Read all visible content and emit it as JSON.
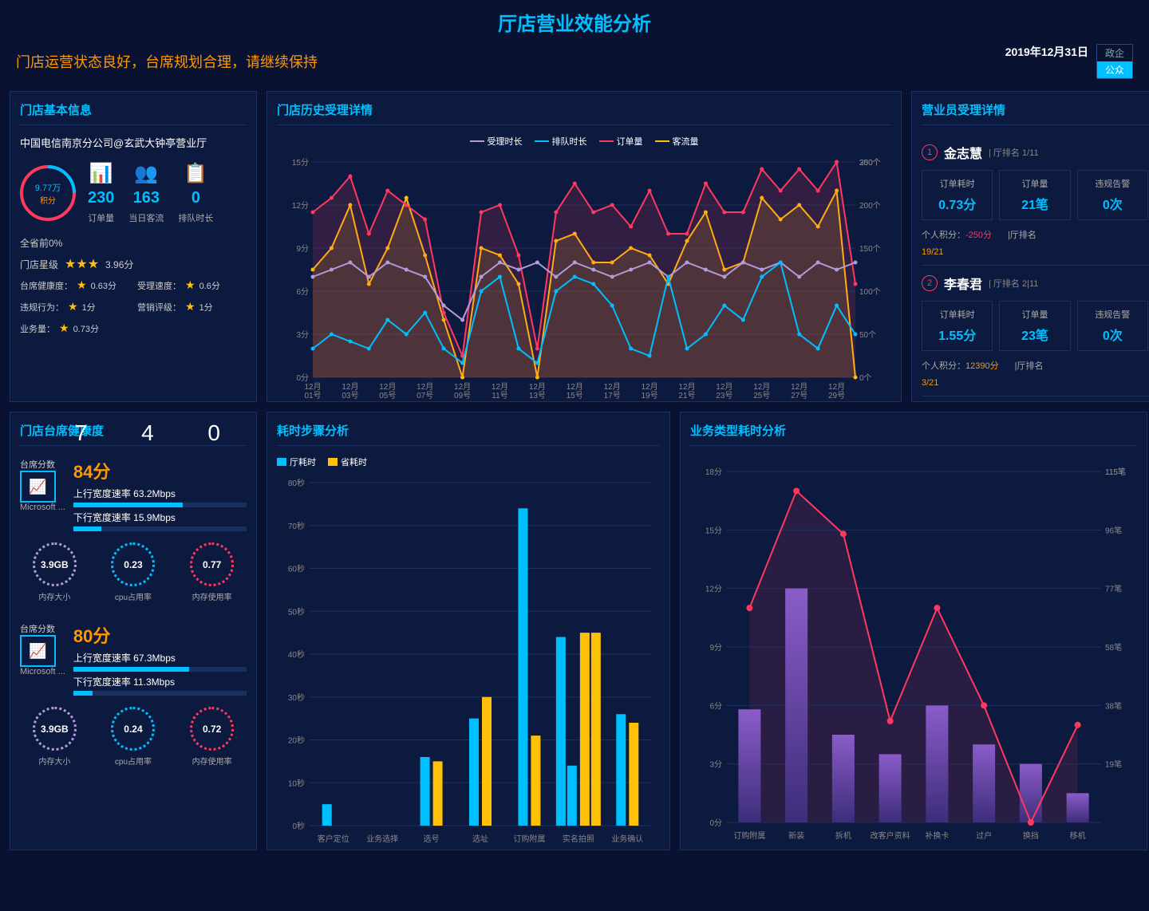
{
  "header": {
    "title": "厅店营业效能分析",
    "subtitle": "门店运营状态良好，台席规划合理，请继续保持",
    "date": "2019年12月31日",
    "tabs": [
      "政企",
      "公众"
    ],
    "active_tab": 1
  },
  "store_info": {
    "title": "门店基本信息",
    "name": "中国电信南京分公司@玄武大钟亭营业厅",
    "score_circle": {
      "value": "9.77万",
      "label": "积分"
    },
    "metrics": [
      {
        "icon": "📊",
        "color": "#00bfff",
        "value": "230",
        "label": "订单量"
      },
      {
        "icon": "👥",
        "color": "#ff3860",
        "value": "163",
        "label": "当日客流"
      },
      {
        "icon": "📋",
        "color": "#00bfff",
        "value": "0",
        "label": "排队时长"
      }
    ],
    "province_rank": "全省前0%",
    "star_label": "门店星级",
    "stars": 3,
    "star_score": "3.96分",
    "details": [
      {
        "label": "台席健康度：",
        "value": "0.63分"
      },
      {
        "label": "受理速度：",
        "value": "0.6分"
      },
      {
        "label": "违规行为：",
        "value": "1分"
      },
      {
        "label": "营销评级：",
        "value": "1分"
      },
      {
        "label": "业务量：",
        "value": "0.73分"
      }
    ]
  },
  "history_chart": {
    "title": "门店历史受理详情",
    "legend": [
      {
        "name": "受理时长",
        "color": "#b19cd9"
      },
      {
        "name": "排队时长",
        "color": "#00bfff"
      },
      {
        "name": "订单量",
        "color": "#ff3860"
      },
      {
        "name": "客流量",
        "color": "#ffc107"
      }
    ],
    "x_labels": [
      "12月01号",
      "12月03号",
      "12月05号",
      "12月07号",
      "12月09号",
      "12月11号",
      "12月13号",
      "12月15号",
      "12月17号",
      "12月19号",
      "12月21号",
      "12月23号",
      "12月25号",
      "12月27号",
      "12月29号"
    ],
    "y_left": {
      "max": 15,
      "step": 3,
      "unit": "分"
    },
    "y_right": {
      "max": 300,
      "step": 50,
      "unit": "个"
    },
    "series": {
      "受理时长": [
        7,
        7.5,
        8,
        7,
        8,
        7.5,
        7,
        5,
        4,
        7,
        8,
        7.5,
        8,
        7,
        8,
        7.5,
        7,
        7.5,
        8,
        7,
        8,
        7.5,
        7,
        8,
        7.5,
        8,
        7,
        8,
        7.5,
        8
      ],
      "排队时长": [
        2,
        3,
        2.5,
        2,
        4,
        3,
        4.5,
        2,
        1,
        6,
        7,
        2,
        1,
        6,
        7,
        6.5,
        5,
        2,
        1.5,
        7,
        2,
        3,
        5,
        4,
        7,
        8,
        3,
        2,
        5,
        3
      ],
      "订单量": [
        230,
        250,
        280,
        200,
        260,
        240,
        220,
        90,
        30,
        230,
        240,
        170,
        40,
        230,
        270,
        230,
        240,
        210,
        260,
        200,
        200,
        270,
        230,
        230,
        290,
        260,
        290,
        260,
        300,
        130
      ],
      "客流量": [
        150,
        180,
        240,
        130,
        180,
        250,
        170,
        80,
        0,
        180,
        170,
        130,
        0,
        190,
        200,
        160,
        160,
        180,
        170,
        130,
        190,
        230,
        150,
        160,
        250,
        220,
        240,
        210,
        260,
        0
      ]
    }
  },
  "employees": {
    "title": "营业员受理详情",
    "list": [
      {
        "rank": 1,
        "name": "金志慧",
        "hall_rank": "1/11",
        "stats": [
          {
            "label": "订单耗时",
            "value": "0.73分"
          },
          {
            "label": "订单量",
            "value": "21笔"
          },
          {
            "label": "违规告警",
            "value": "0次"
          }
        ],
        "points_label": "个人积分：",
        "points": "-250分",
        "points_class": "neg",
        "rank2_label": "|厅排名",
        "rank2": "19/21"
      },
      {
        "rank": 2,
        "name": "李春君",
        "hall_rank": "2|11",
        "stats": [
          {
            "label": "订单耗时",
            "value": "1.55分"
          },
          {
            "label": "订单量",
            "value": "23笔"
          },
          {
            "label": "违规告警",
            "value": "0次"
          }
        ],
        "points_label": "个人积分：",
        "points": "12390分",
        "points_class": "pos",
        "rank2_label": "|厅排名",
        "rank2": "3/21"
      }
    ]
  },
  "health": {
    "title": "门店台席健康度",
    "bignum": "740",
    "blocks": [
      {
        "label": "台席分数",
        "score": "84分",
        "system": "Microsoft ...",
        "up_label": "上行宽度速率",
        "up": "63.2Mbps",
        "up_pct": 63,
        "down_label": "下行宽度速率",
        "down": "15.9Mbps",
        "down_pct": 16,
        "gauges": [
          {
            "value": "3.9GB",
            "label": "内存大小",
            "color": "#b19cd9"
          },
          {
            "value": "0.23",
            "label": "cpu占用率",
            "color": "#00bfff"
          },
          {
            "value": "0.77",
            "label": "内存使用率",
            "color": "#ff3860"
          }
        ]
      },
      {
        "label": "台席分数",
        "score": "80分",
        "system": "Microsoft ...",
        "up_label": "上行宽度速率",
        "up": "67.3Mbps",
        "up_pct": 67,
        "down_label": "下行宽度速率",
        "down": "11.3Mbps",
        "down_pct": 11,
        "gauges": [
          {
            "value": "3.9GB",
            "label": "内存大小",
            "color": "#b19cd9"
          },
          {
            "value": "0.24",
            "label": "cpu占用率",
            "color": "#00bfff"
          },
          {
            "value": "0.72",
            "label": "内存使用率",
            "color": "#ff3860"
          }
        ]
      }
    ]
  },
  "step_chart": {
    "title": "耗时步骤分析",
    "legend": [
      {
        "name": "厅耗时",
        "color": "#00bfff"
      },
      {
        "name": "省耗时",
        "color": "#ffc107"
      }
    ],
    "x_labels": [
      "客户定位",
      "业务选择",
      "选号",
      "选址",
      "订购附属",
      "实名拍照",
      "业务确认"
    ],
    "y_max": 80,
    "y_step": 10,
    "y_unit": "秒",
    "series": {
      "厅耗时": [
        5,
        0,
        16,
        25,
        74,
        14,
        44,
        26
      ],
      "省耗时": [
        0,
        0,
        15,
        30,
        21,
        0,
        45,
        45,
        24
      ]
    },
    "hall": [
      5,
      0,
      16,
      25,
      74,
      14,
      26
    ],
    "prov": [
      0,
      0,
      15,
      30,
      21,
      45,
      24
    ],
    "extra_hall": [
      0,
      0,
      0,
      0,
      0,
      44,
      0
    ],
    "extra_prov": [
      0,
      0,
      0,
      0,
      0,
      45,
      0
    ]
  },
  "biz_chart": {
    "title": "业务类型耗时分析",
    "x_labels": [
      "订购附属",
      "新装",
      "拆机",
      "改客户资料",
      "补换卡",
      "过户",
      "换挡",
      "移机"
    ],
    "y_left": {
      "max": 18,
      "step": 3,
      "unit": "分"
    },
    "y_right": {
      "max": 115,
      "step": 20,
      "unit": "笔"
    },
    "bars": [
      5.8,
      12,
      4.5,
      3.5,
      6,
      4,
      3,
      1.5
    ],
    "line": [
      11,
      17,
      14.8,
      5.2,
      11,
      6,
      0,
      5
    ],
    "bar_colors": [
      "#4a3d8f",
      "#6b4ba8"
    ],
    "line_color": "#ff3860"
  },
  "colors": {
    "bg": "#0a1232",
    "panel": "#0d1a3f",
    "border": "#1a3060",
    "accent": "#00bfff",
    "warn": "#ff9800",
    "danger": "#ff3860",
    "yellow": "#ffc107",
    "purple": "#b19cd9"
  }
}
